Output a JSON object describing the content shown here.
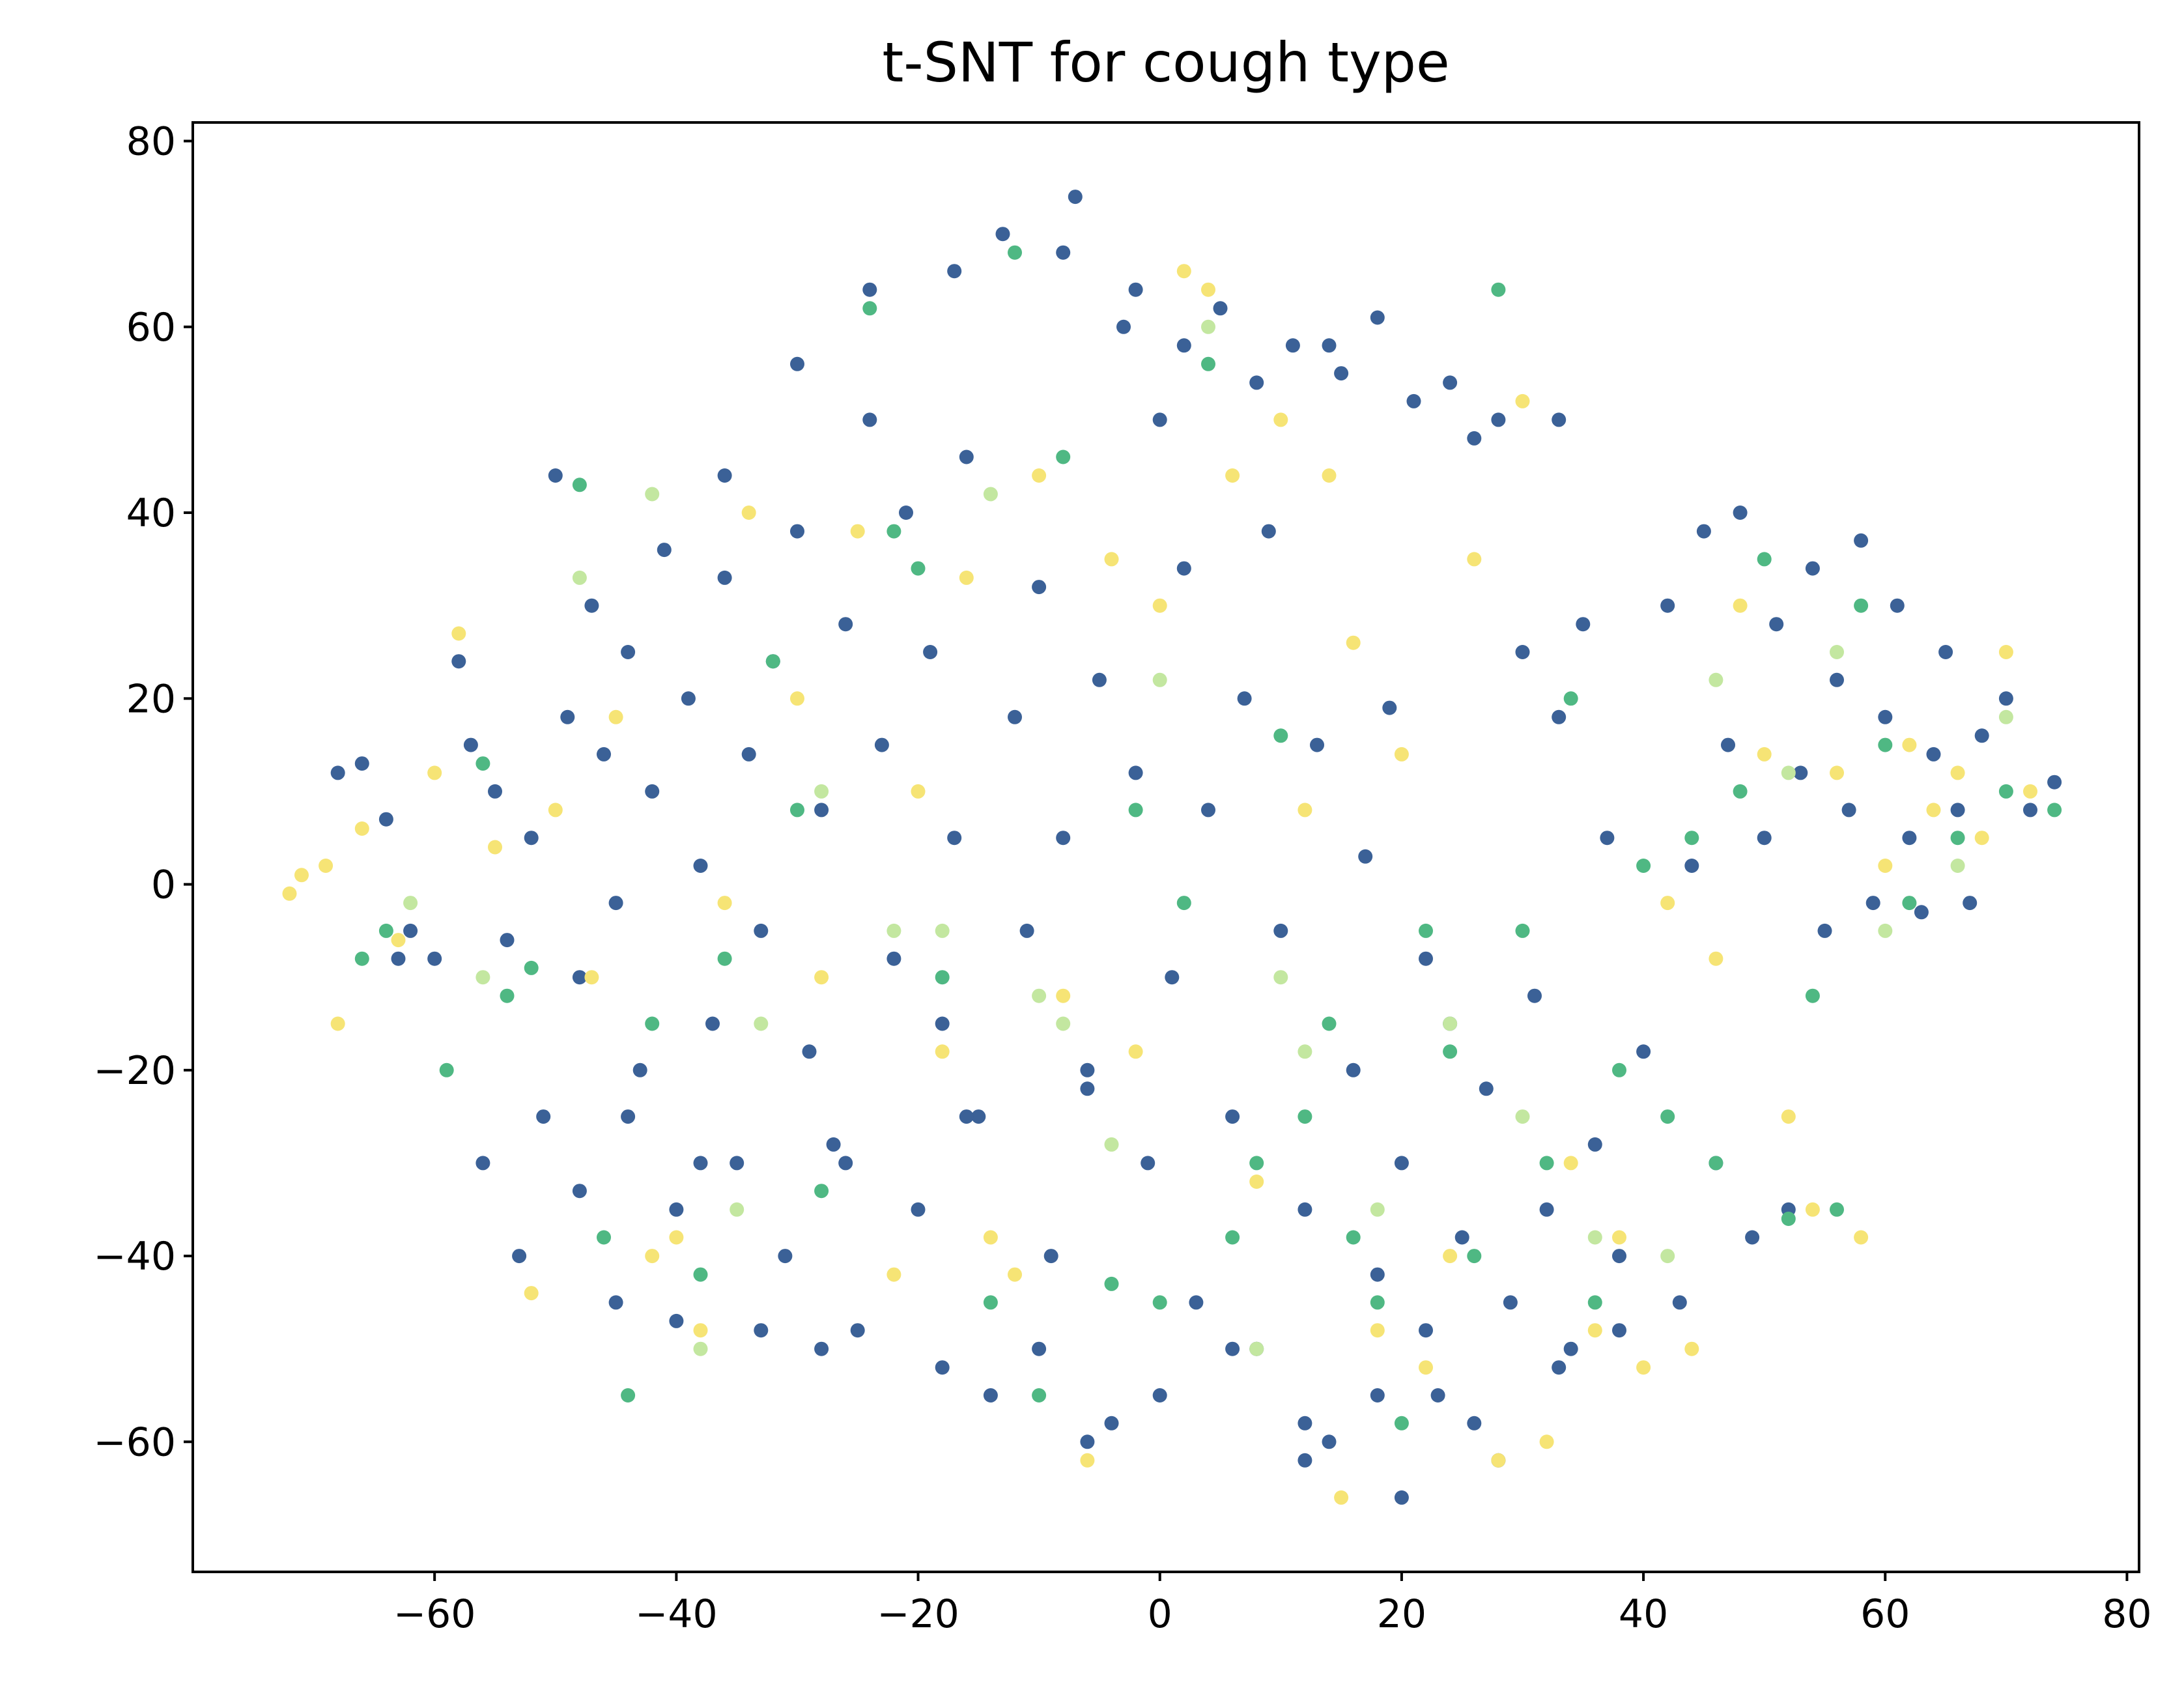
{
  "chart_data": {
    "type": "scatter",
    "title": "t-SNT for cough type",
    "xlabel": "",
    "ylabel": "",
    "xlim": [
      -80,
      81
    ],
    "ylim": [
      -74,
      82
    ],
    "x_ticks": [
      -60,
      -40,
      -20,
      0,
      20,
      40,
      60,
      80
    ],
    "y_ticks": [
      -60,
      -40,
      -20,
      0,
      20,
      40,
      60,
      80
    ],
    "x_tick_labels": [
      "−60",
      "−40",
      "−20",
      "0",
      "20",
      "40",
      "60",
      "80"
    ],
    "y_tick_labels": [
      "−60",
      "−40",
      "−20",
      "0",
      "20",
      "40",
      "60",
      "80"
    ],
    "grid": false,
    "legend": "none",
    "colors": {
      "class_0": "#3b6197",
      "class_1": "#4fb883",
      "class_2": "#c3e7a0",
      "class_3": "#f6e475"
    },
    "series": [
      {
        "color": "#3b6197",
        "points": [
          [
            -68,
            12
          ],
          [
            -66,
            13
          ],
          [
            -64,
            7
          ],
          [
            -62,
            -5
          ],
          [
            -60,
            -8
          ],
          [
            -58,
            24
          ],
          [
            -57,
            15
          ],
          [
            -55,
            10
          ],
          [
            -54,
            -6
          ],
          [
            -52,
            5
          ],
          [
            -51,
            -25
          ],
          [
            -50,
            44
          ],
          [
            -49,
            18
          ],
          [
            -48,
            -10
          ],
          [
            -47,
            30
          ],
          [
            -46,
            14
          ],
          [
            -45,
            -2
          ],
          [
            -44,
            25
          ],
          [
            -43,
            -20
          ],
          [
            -42,
            10
          ],
          [
            -41,
            36
          ],
          [
            -40,
            -35
          ],
          [
            -39,
            20
          ],
          [
            -38,
            2
          ],
          [
            -37,
            -15
          ],
          [
            -36,
            33
          ],
          [
            -35,
            -30
          ],
          [
            -34,
            14
          ],
          [
            -33,
            -5
          ],
          [
            -32,
            24
          ],
          [
            -31,
            -40
          ],
          [
            -30,
            38
          ],
          [
            -29,
            -18
          ],
          [
            -28,
            8
          ],
          [
            -27,
            -28
          ],
          [
            -26,
            28
          ],
          [
            -25,
            -48
          ],
          [
            -24,
            64
          ],
          [
            -23,
            15
          ],
          [
            -22,
            -8
          ],
          [
            -21,
            40
          ],
          [
            -20,
            -35
          ],
          [
            -19,
            25
          ],
          [
            -18,
            -15
          ],
          [
            -17,
            5
          ],
          [
            -16,
            46
          ],
          [
            -15,
            -25
          ],
          [
            -14,
            -55
          ],
          [
            -13,
            70
          ],
          [
            -12,
            18
          ],
          [
            -11,
            -5
          ],
          [
            -10,
            32
          ],
          [
            -9,
            -40
          ],
          [
            -8,
            5
          ],
          [
            -7,
            74
          ],
          [
            -6,
            -20
          ],
          [
            -5,
            22
          ],
          [
            -4,
            -58
          ],
          [
            -3,
            60
          ],
          [
            -2,
            12
          ],
          [
            -1,
            -30
          ],
          [
            0,
            50
          ],
          [
            1,
            -10
          ],
          [
            2,
            34
          ],
          [
            3,
            -45
          ],
          [
            4,
            8
          ],
          [
            5,
            62
          ],
          [
            6,
            -25
          ],
          [
            7,
            20
          ],
          [
            8,
            -50
          ],
          [
            9,
            38
          ],
          [
            10,
            -5
          ],
          [
            11,
            58
          ],
          [
            12,
            -35
          ],
          [
            13,
            15
          ],
          [
            14,
            -60
          ],
          [
            15,
            55
          ],
          [
            16,
            -20
          ],
          [
            17,
            3
          ],
          [
            18,
            -42
          ],
          [
            19,
            19
          ],
          [
            20,
            -30
          ],
          [
            21,
            52
          ],
          [
            22,
            -8
          ],
          [
            23,
            -55
          ],
          [
            24,
            -15
          ],
          [
            25,
            -38
          ],
          [
            26,
            48
          ],
          [
            27,
            -22
          ],
          [
            28,
            -62
          ],
          [
            29,
            -45
          ],
          [
            30,
            25
          ],
          [
            31,
            -12
          ],
          [
            32,
            -35
          ],
          [
            33,
            18
          ],
          [
            34,
            -50
          ],
          [
            35,
            28
          ],
          [
            36,
            -28
          ],
          [
            37,
            5
          ],
          [
            38,
            -40
          ],
          [
            40,
            -18
          ],
          [
            42,
            30
          ],
          [
            43,
            -45
          ],
          [
            44,
            2
          ],
          [
            45,
            38
          ],
          [
            46,
            -30
          ],
          [
            47,
            15
          ],
          [
            48,
            40
          ],
          [
            49,
            -38
          ],
          [
            50,
            5
          ],
          [
            51,
            28
          ],
          [
            52,
            -35
          ],
          [
            53,
            12
          ],
          [
            54,
            34
          ],
          [
            55,
            -5
          ],
          [
            56,
            22
          ],
          [
            57,
            8
          ],
          [
            58,
            37
          ],
          [
            59,
            -2
          ],
          [
            60,
            18
          ],
          [
            61,
            30
          ],
          [
            62,
            5
          ],
          [
            63,
            -3
          ],
          [
            64,
            14
          ],
          [
            65,
            25
          ],
          [
            66,
            8
          ],
          [
            67,
            -2
          ],
          [
            68,
            16
          ],
          [
            70,
            20
          ],
          [
            72,
            8
          ],
          [
            74,
            11
          ],
          [
            -63,
            -8
          ],
          [
            -56,
            -30
          ],
          [
            -53,
            -40
          ],
          [
            -48,
            -33
          ],
          [
            -45,
            -45
          ],
          [
            -40,
            -47
          ],
          [
            -33,
            -48
          ],
          [
            -28,
            -50
          ],
          [
            -18,
            -52
          ],
          [
            -10,
            -50
          ],
          [
            -6,
            -60
          ],
          [
            0,
            -55
          ],
          [
            6,
            -50
          ],
          [
            12,
            -58
          ],
          [
            18,
            -55
          ],
          [
            22,
            -48
          ],
          [
            26,
            -58
          ],
          [
            33,
            -52
          ],
          [
            38,
            -48
          ],
          [
            12,
            -62
          ],
          [
            20,
            -66
          ],
          [
            -36,
            44
          ],
          [
            -30,
            56
          ],
          [
            -24,
            50
          ],
          [
            -17,
            66
          ],
          [
            -8,
            68
          ],
          [
            -2,
            64
          ],
          [
            2,
            58
          ],
          [
            8,
            54
          ],
          [
            14,
            58
          ],
          [
            18,
            61
          ],
          [
            24,
            54
          ],
          [
            28,
            50
          ],
          [
            33,
            50
          ],
          [
            -44,
            -25
          ],
          [
            -38,
            -30
          ],
          [
            -26,
            -30
          ],
          [
            -16,
            -25
          ],
          [
            -6,
            -22
          ]
        ]
      },
      {
        "color": "#4fb883",
        "points": [
          [
            -64,
            -5
          ],
          [
            -59,
            -20
          ],
          [
            -56,
            13
          ],
          [
            -52,
            -9
          ],
          [
            -48,
            43
          ],
          [
            -46,
            -38
          ],
          [
            -42,
            -15
          ],
          [
            -38,
            -42
          ],
          [
            -36,
            -8
          ],
          [
            -32,
            24
          ],
          [
            -28,
            -33
          ],
          [
            -24,
            62
          ],
          [
            -22,
            38
          ],
          [
            -18,
            -10
          ],
          [
            -14,
            -45
          ],
          [
            -12,
            68
          ],
          [
            -8,
            46
          ],
          [
            -4,
            -43
          ],
          [
            -2,
            8
          ],
          [
            0,
            -45
          ],
          [
            4,
            56
          ],
          [
            6,
            -38
          ],
          [
            8,
            -30
          ],
          [
            10,
            16
          ],
          [
            12,
            -25
          ],
          [
            14,
            -15
          ],
          [
            16,
            -38
          ],
          [
            18,
            -45
          ],
          [
            20,
            -58
          ],
          [
            22,
            -5
          ],
          [
            24,
            -18
          ],
          [
            26,
            -40
          ],
          [
            28,
            64
          ],
          [
            30,
            -5
          ],
          [
            32,
            -30
          ],
          [
            34,
            20
          ],
          [
            36,
            -45
          ],
          [
            38,
            -20
          ],
          [
            40,
            2
          ],
          [
            42,
            -25
          ],
          [
            44,
            5
          ],
          [
            46,
            -30
          ],
          [
            48,
            10
          ],
          [
            50,
            35
          ],
          [
            52,
            -36
          ],
          [
            54,
            -12
          ],
          [
            56,
            -35
          ],
          [
            58,
            30
          ],
          [
            60,
            15
          ],
          [
            62,
            -2
          ],
          [
            66,
            5
          ],
          [
            70,
            10
          ],
          [
            74,
            8
          ],
          [
            -66,
            -8
          ],
          [
            -54,
            -12
          ],
          [
            -44,
            -55
          ],
          [
            -30,
            8
          ],
          [
            -20,
            34
          ],
          [
            -10,
            -55
          ],
          [
            2,
            -2
          ]
        ]
      },
      {
        "color": "#c3e7a0",
        "points": [
          [
            -62,
            -2
          ],
          [
            -56,
            -10
          ],
          [
            -48,
            33
          ],
          [
            -42,
            42
          ],
          [
            -38,
            -50
          ],
          [
            -33,
            -15
          ],
          [
            -28,
            10
          ],
          [
            -22,
            -5
          ],
          [
            -18,
            -5
          ],
          [
            -14,
            42
          ],
          [
            -10,
            -12
          ],
          [
            -4,
            -28
          ],
          [
            0,
            22
          ],
          [
            4,
            60
          ],
          [
            8,
            -50
          ],
          [
            12,
            -18
          ],
          [
            18,
            -35
          ],
          [
            24,
            -15
          ],
          [
            30,
            -25
          ],
          [
            36,
            -38
          ],
          [
            42,
            -40
          ],
          [
            46,
            22
          ],
          [
            52,
            12
          ],
          [
            56,
            25
          ],
          [
            60,
            -5
          ],
          [
            66,
            2
          ],
          [
            70,
            18
          ],
          [
            -35,
            -35
          ],
          [
            10,
            -10
          ],
          [
            -8,
            -15
          ]
        ]
      },
      {
        "color": "#f6e475",
        "points": [
          [
            -72,
            -1
          ],
          [
            -71,
            1
          ],
          [
            -69,
            2
          ],
          [
            -68,
            -15
          ],
          [
            -66,
            6
          ],
          [
            -63,
            -6
          ],
          [
            -60,
            12
          ],
          [
            -58,
            27
          ],
          [
            -55,
            4
          ],
          [
            -52,
            -44
          ],
          [
            -50,
            8
          ],
          [
            -47,
            -10
          ],
          [
            -45,
            18
          ],
          [
            -42,
            -40
          ],
          [
            -38,
            -48
          ],
          [
            -36,
            -2
          ],
          [
            -34,
            40
          ],
          [
            -30,
            20
          ],
          [
            -28,
            -10
          ],
          [
            -25,
            38
          ],
          [
            -22,
            -42
          ],
          [
            -20,
            10
          ],
          [
            -18,
            -18
          ],
          [
            -16,
            33
          ],
          [
            -14,
            -38
          ],
          [
            -12,
            -42
          ],
          [
            -10,
            44
          ],
          [
            -8,
            -12
          ],
          [
            -6,
            -62
          ],
          [
            -4,
            35
          ],
          [
            -2,
            -18
          ],
          [
            0,
            30
          ],
          [
            2,
            66
          ],
          [
            4,
            64
          ],
          [
            6,
            44
          ],
          [
            8,
            -32
          ],
          [
            10,
            50
          ],
          [
            12,
            8
          ],
          [
            14,
            44
          ],
          [
            15,
            -66
          ],
          [
            16,
            26
          ],
          [
            18,
            -48
          ],
          [
            20,
            14
          ],
          [
            22,
            -52
          ],
          [
            24,
            -40
          ],
          [
            26,
            35
          ],
          [
            28,
            -62
          ],
          [
            30,
            52
          ],
          [
            32,
            -60
          ],
          [
            34,
            -30
          ],
          [
            36,
            -48
          ],
          [
            38,
            -38
          ],
          [
            40,
            -52
          ],
          [
            42,
            -2
          ],
          [
            44,
            -50
          ],
          [
            46,
            -8
          ],
          [
            48,
            30
          ],
          [
            50,
            14
          ],
          [
            52,
            -25
          ],
          [
            54,
            -35
          ],
          [
            56,
            12
          ],
          [
            58,
            -38
          ],
          [
            60,
            2
          ],
          [
            62,
            15
          ],
          [
            64,
            8
          ],
          [
            66,
            12
          ],
          [
            68,
            5
          ],
          [
            70,
            25
          ],
          [
            72,
            10
          ],
          [
            -40,
            -38
          ]
        ]
      }
    ]
  }
}
